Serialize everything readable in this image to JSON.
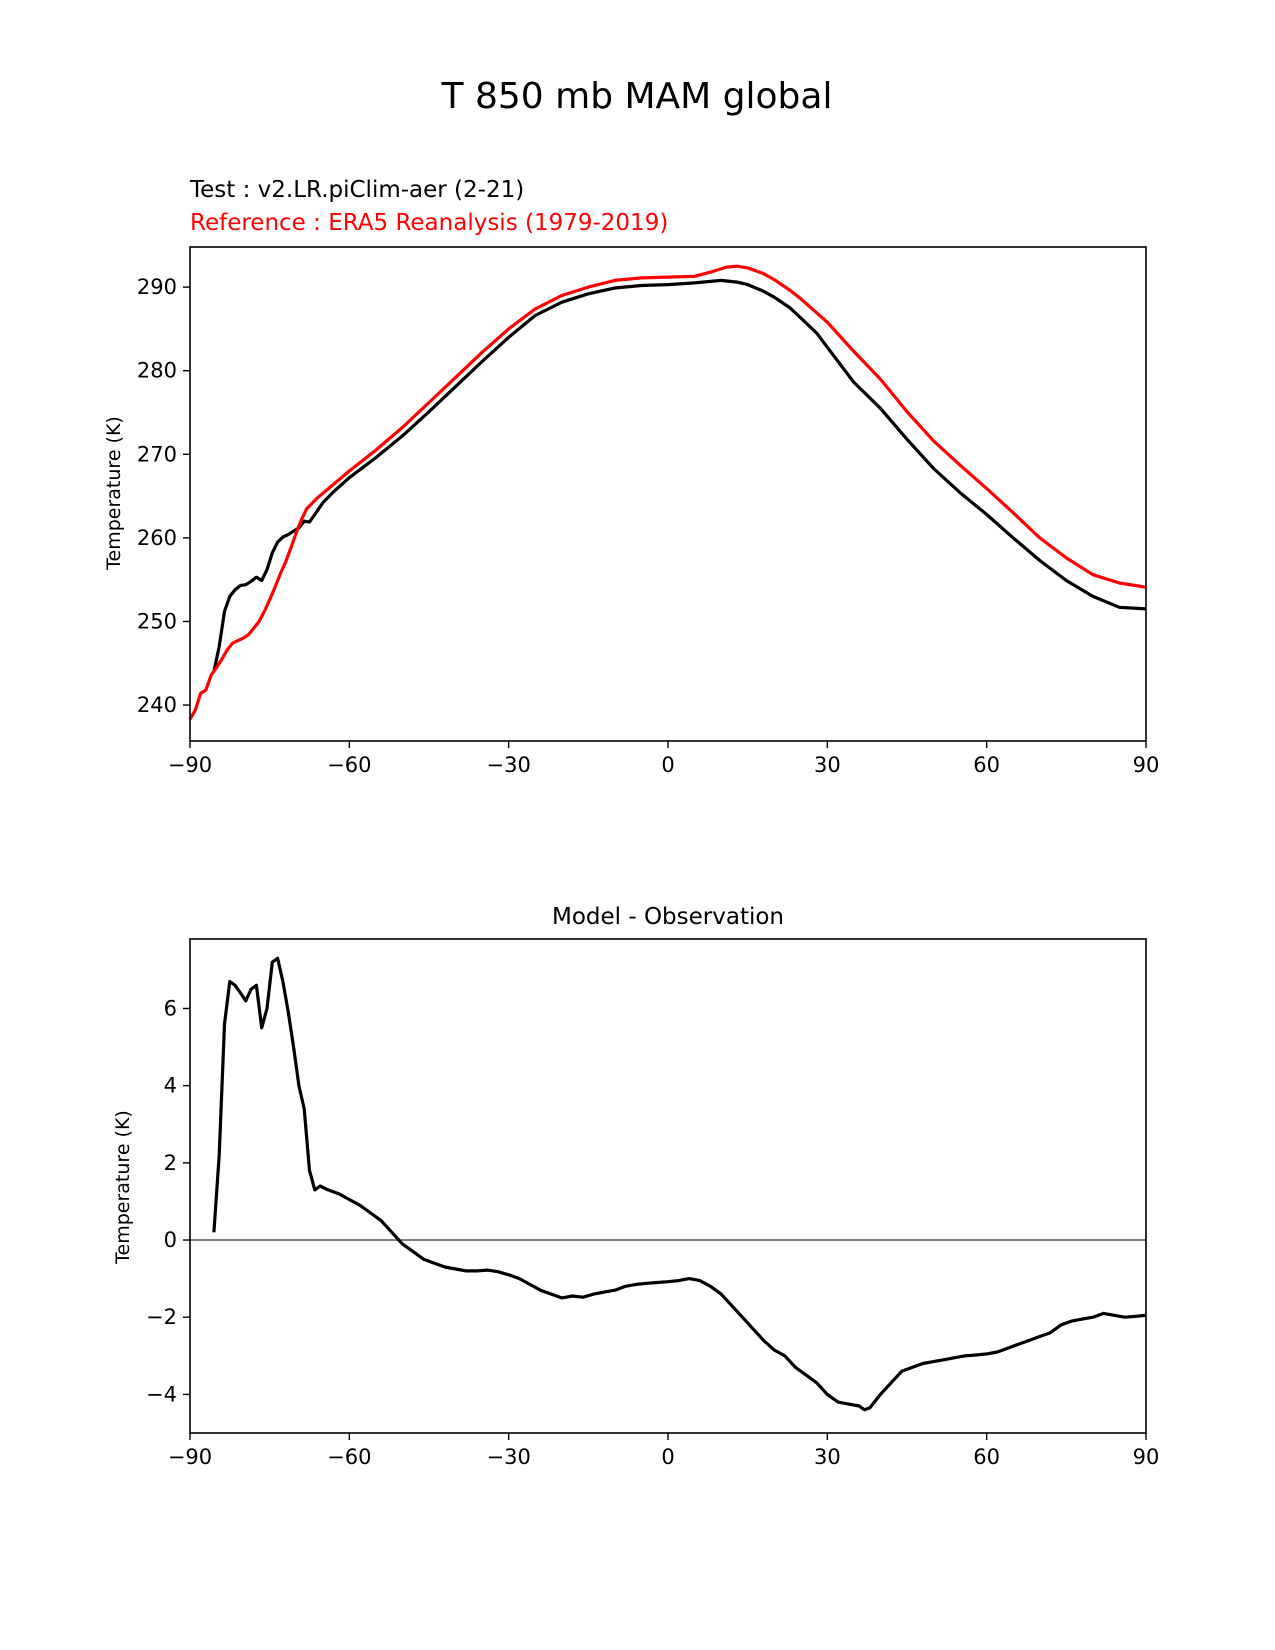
{
  "figure": {
    "title": "T 850 mb MAM global",
    "test_label": "Test : v2.LR.piClim-aer (2-21)",
    "reference_label": "Reference : ERA5 Reanalysis (1979-2019)"
  },
  "colors": {
    "test": "#000000",
    "reference": "#ff0000",
    "zero_line": "#808080"
  },
  "chart_data": [
    {
      "type": "line",
      "title": "",
      "xlabel": "",
      "ylabel": "Temperature (K)",
      "xlim": [
        -90,
        90
      ],
      "ylim": [
        235.7,
        294.8
      ],
      "xticks": [
        -90,
        -60,
        -30,
        0,
        30,
        60,
        90
      ],
      "yticks": [
        240,
        250,
        260,
        270,
        280,
        290
      ],
      "grid": false,
      "series": [
        {
          "name": "Test : v2.LR.piClim-aer (2-21)",
          "color": "#000000",
          "points": [
            [
              -85.5,
              244
            ],
            [
              -84.5,
              247
            ],
            [
              -83.5,
              251.2
            ],
            [
              -82.5,
              253
            ],
            [
              -81.5,
              253.8
            ],
            [
              -80.5,
              254.3
            ],
            [
              -79.5,
              254.4
            ],
            [
              -78.5,
              254.8
            ],
            [
              -77.5,
              255.3
            ],
            [
              -76.5,
              254.9
            ],
            [
              -75.5,
              256.2
            ],
            [
              -74.5,
              258.2
            ],
            [
              -73.5,
              259.5
            ],
            [
              -72.5,
              260.1
            ],
            [
              -71.5,
              260.4
            ],
            [
              -70.5,
              260.8
            ],
            [
              -69.5,
              261.2
            ],
            [
              -68.5,
              262.0
            ],
            [
              -67.5,
              261.9
            ],
            [
              -66.5,
              262.8
            ],
            [
              -65,
              264.2
            ],
            [
              -63,
              265.5
            ],
            [
              -60,
              267.2
            ],
            [
              -55,
              269.6
            ],
            [
              -50,
              272.2
            ],
            [
              -45,
              275.1
            ],
            [
              -40,
              278.1
            ],
            [
              -35,
              281.1
            ],
            [
              -30,
              284.0
            ],
            [
              -25,
              286.6
            ],
            [
              -20,
              288.2
            ],
            [
              -15,
              289.2
            ],
            [
              -10,
              289.9
            ],
            [
              -5,
              290.2
            ],
            [
              0,
              290.3
            ],
            [
              5,
              290.5
            ],
            [
              10,
              290.8
            ],
            [
              13,
              290.6
            ],
            [
              15,
              290.3
            ],
            [
              18,
              289.5
            ],
            [
              20,
              288.8
            ],
            [
              23,
              287.5
            ],
            [
              25,
              286.3
            ],
            [
              28,
              284.5
            ],
            [
              30,
              282.8
            ],
            [
              35,
              278.6
            ],
            [
              40,
              275.5
            ],
            [
              45,
              271.8
            ],
            [
              50,
              268.3
            ],
            [
              55,
              265.4
            ],
            [
              60,
              262.8
            ],
            [
              65,
              260.0
            ],
            [
              70,
              257.3
            ],
            [
              75,
              254.9
            ],
            [
              80,
              253.0
            ],
            [
              85,
              251.7
            ],
            [
              90,
              251.5
            ]
          ]
        },
        {
          "name": "Reference : ERA5 Reanalysis (1979-2019)",
          "color": "#ff0000",
          "points": [
            [
              -90,
              238.3
            ],
            [
              -89,
              239.4
            ],
            [
              -88,
              241.4
            ],
            [
              -87,
              241.8
            ],
            [
              -86,
              243.6
            ],
            [
              -85,
              244.5
            ],
            [
              -84,
              245.5
            ],
            [
              -83,
              246.6
            ],
            [
              -82,
              247.4
            ],
            [
              -81,
              247.7
            ],
            [
              -80,
              248.0
            ],
            [
              -79,
              248.4
            ],
            [
              -78,
              249.2
            ],
            [
              -77,
              250.0
            ],
            [
              -76,
              251.2
            ],
            [
              -75,
              252.6
            ],
            [
              -74,
              254.1
            ],
            [
              -73,
              255.7
            ],
            [
              -72,
              257.1
            ],
            [
              -71,
              258.8
            ],
            [
              -70,
              260.6
            ],
            [
              -69,
              262.2
            ],
            [
              -68,
              263.5
            ],
            [
              -66,
              264.8
            ],
            [
              -63,
              266.4
            ],
            [
              -60,
              268.0
            ],
            [
              -55,
              270.5
            ],
            [
              -50,
              273.2
            ],
            [
              -45,
              276.2
            ],
            [
              -40,
              279.2
            ],
            [
              -35,
              282.2
            ],
            [
              -30,
              285.0
            ],
            [
              -25,
              287.4
            ],
            [
              -20,
              289.0
            ],
            [
              -15,
              290.0
            ],
            [
              -10,
              290.8
            ],
            [
              -5,
              291.1
            ],
            [
              0,
              291.2
            ],
            [
              5,
              291.3
            ],
            [
              8,
              291.8
            ],
            [
              11,
              292.4
            ],
            [
              13,
              292.5
            ],
            [
              15,
              292.3
            ],
            [
              18,
              291.6
            ],
            [
              20,
              290.9
            ],
            [
              23,
              289.6
            ],
            [
              25,
              288.6
            ],
            [
              30,
              285.8
            ],
            [
              35,
              282.3
            ],
            [
              40,
              279.0
            ],
            [
              45,
              275.1
            ],
            [
              50,
              271.6
            ],
            [
              55,
              268.7
            ],
            [
              60,
              265.9
            ],
            [
              65,
              263.0
            ],
            [
              70,
              260.0
            ],
            [
              75,
              257.6
            ],
            [
              80,
              255.6
            ],
            [
              85,
              254.6
            ],
            [
              90,
              254.1
            ]
          ]
        }
      ]
    },
    {
      "type": "line",
      "title": "Model - Observation",
      "xlabel": "",
      "ylabel": "Temperature (K)",
      "xlim": [
        -90,
        90
      ],
      "ylim": [
        -5.0,
        7.8
      ],
      "xticks": [
        -90,
        -60,
        -30,
        0,
        30,
        60,
        90
      ],
      "yticks": [
        -4,
        -2,
        0,
        2,
        4,
        6
      ],
      "grid": false,
      "zero_line": 0,
      "series": [
        {
          "name": "",
          "color": "#000000",
          "points": [
            [
              -85.5,
              0.2
            ],
            [
              -84.5,
              2.2
            ],
            [
              -83.5,
              5.6
            ],
            [
              -82.5,
              6.7
            ],
            [
              -81.5,
              6.6
            ],
            [
              -80.5,
              6.4
            ],
            [
              -79.5,
              6.2
            ],
            [
              -78.5,
              6.5
            ],
            [
              -77.5,
              6.6
            ],
            [
              -76.5,
              5.5
            ],
            [
              -75.5,
              6.0
            ],
            [
              -74.5,
              7.2
            ],
            [
              -73.5,
              7.3
            ],
            [
              -72.5,
              6.7
            ],
            [
              -71.5,
              5.9
            ],
            [
              -70.5,
              5.0
            ],
            [
              -69.5,
              4.0
            ],
            [
              -68.5,
              3.4
            ],
            [
              -67.5,
              1.8
            ],
            [
              -66.5,
              1.3
            ],
            [
              -65.5,
              1.4
            ],
            [
              -64,
              1.3
            ],
            [
              -62,
              1.2
            ],
            [
              -60,
              1.05
            ],
            [
              -58,
              0.9
            ],
            [
              -56,
              0.7
            ],
            [
              -54,
              0.5
            ],
            [
              -52,
              0.2
            ],
            [
              -50,
              -0.1
            ],
            [
              -48,
              -0.3
            ],
            [
              -46,
              -0.5
            ],
            [
              -44,
              -0.6
            ],
            [
              -42,
              -0.7
            ],
            [
              -40,
              -0.75
            ],
            [
              -38,
              -0.8
            ],
            [
              -36,
              -0.8
            ],
            [
              -34,
              -0.78
            ],
            [
              -32,
              -0.82
            ],
            [
              -30,
              -0.9
            ],
            [
              -28,
              -1.0
            ],
            [
              -26,
              -1.15
            ],
            [
              -24,
              -1.3
            ],
            [
              -22,
              -1.4
            ],
            [
              -20,
              -1.5
            ],
            [
              -18,
              -1.45
            ],
            [
              -16,
              -1.48
            ],
            [
              -14,
              -1.4
            ],
            [
              -12,
              -1.35
            ],
            [
              -10,
              -1.3
            ],
            [
              -8,
              -1.2
            ],
            [
              -6,
              -1.15
            ],
            [
              -4,
              -1.12
            ],
            [
              -2,
              -1.1
            ],
            [
              0,
              -1.08
            ],
            [
              2,
              -1.05
            ],
            [
              4,
              -1.0
            ],
            [
              6,
              -1.05
            ],
            [
              8,
              -1.2
            ],
            [
              10,
              -1.4
            ],
            [
              12,
              -1.7
            ],
            [
              14,
              -2.0
            ],
            [
              16,
              -2.3
            ],
            [
              18,
              -2.6
            ],
            [
              20,
              -2.85
            ],
            [
              22,
              -3.0
            ],
            [
              24,
              -3.3
            ],
            [
              26,
              -3.5
            ],
            [
              28,
              -3.7
            ],
            [
              30,
              -4.0
            ],
            [
              32,
              -4.2
            ],
            [
              34,
              -4.25
            ],
            [
              36,
              -4.3
            ],
            [
              37,
              -4.4
            ],
            [
              38,
              -4.35
            ],
            [
              40,
              -4.0
            ],
            [
              42,
              -3.7
            ],
            [
              44,
              -3.4
            ],
            [
              46,
              -3.3
            ],
            [
              48,
              -3.2
            ],
            [
              50,
              -3.15
            ],
            [
              52,
              -3.1
            ],
            [
              54,
              -3.05
            ],
            [
              56,
              -3.0
            ],
            [
              58,
              -2.98
            ],
            [
              60,
              -2.95
            ],
            [
              62,
              -2.9
            ],
            [
              64,
              -2.8
            ],
            [
              66,
              -2.7
            ],
            [
              68,
              -2.6
            ],
            [
              70,
              -2.5
            ],
            [
              72,
              -2.4
            ],
            [
              74,
              -2.2
            ],
            [
              76,
              -2.1
            ],
            [
              78,
              -2.05
            ],
            [
              80,
              -2.0
            ],
            [
              82,
              -1.9
            ],
            [
              84,
              -1.95
            ],
            [
              86,
              -2.0
            ],
            [
              88,
              -1.98
            ],
            [
              90,
              -1.95
            ]
          ]
        }
      ]
    }
  ]
}
